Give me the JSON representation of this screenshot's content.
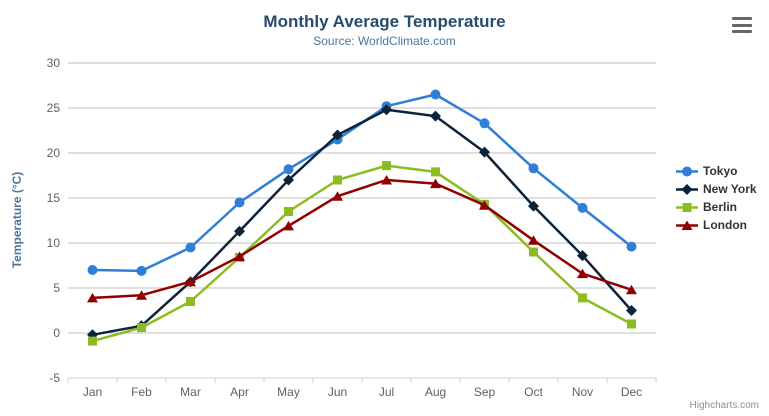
{
  "header": {
    "title": "Monthly Average Temperature",
    "subtitle": "Source: WorldClimate.com"
  },
  "credits": "Highcharts.com",
  "menu_icon": "hamburger-menu-icon",
  "colors": {
    "title": "#274b6d",
    "subtitle": "#4d759e",
    "axis_title": "#4d759e",
    "tick_label": "#606060",
    "gridline": "#c0c0c0",
    "axis_line": "#c0d0e0",
    "legend_text": "#333333",
    "credits_text": "#909090"
  },
  "chart_data": {
    "type": "line",
    "title": "Monthly Average Temperature",
    "subtitle": "Source: WorldClimate.com",
    "xlabel": "",
    "ylabel": "Temperature (°C)",
    "ylim": [
      -5,
      30
    ],
    "yticks": [
      -5,
      0,
      5,
      10,
      15,
      20,
      25,
      30
    ],
    "grid": "horizontal",
    "legend_position": "right",
    "categories": [
      "Jan",
      "Feb",
      "Mar",
      "Apr",
      "May",
      "Jun",
      "Jul",
      "Aug",
      "Sep",
      "Oct",
      "Nov",
      "Dec"
    ],
    "series": [
      {
        "name": "Tokyo",
        "color": "#2f7ed8",
        "marker": "circle",
        "values": [
          7.0,
          6.9,
          9.5,
          14.5,
          18.2,
          21.5,
          25.2,
          26.5,
          23.3,
          18.3,
          13.9,
          9.6
        ]
      },
      {
        "name": "New York",
        "color": "#0d233a",
        "marker": "diamond",
        "values": [
          -0.2,
          0.8,
          5.7,
          11.3,
          17.0,
          22.0,
          24.8,
          24.1,
          20.1,
          14.1,
          8.6,
          2.5
        ]
      },
      {
        "name": "Berlin",
        "color": "#8bbc21",
        "marker": "square",
        "values": [
          -0.9,
          0.6,
          3.5,
          8.4,
          13.5,
          17.0,
          18.6,
          17.9,
          14.3,
          9.0,
          3.9,
          1.0
        ]
      },
      {
        "name": "London",
        "color": "#910000",
        "marker": "triangle",
        "values": [
          3.9,
          4.2,
          5.7,
          8.5,
          11.9,
          15.2,
          17.0,
          16.6,
          14.2,
          10.3,
          6.6,
          4.8
        ]
      }
    ]
  }
}
